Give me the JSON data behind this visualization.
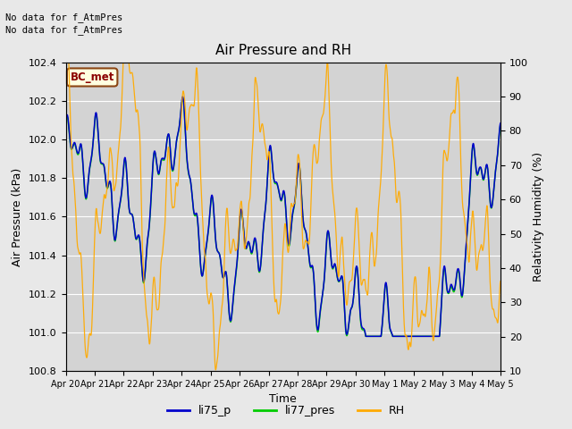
{
  "title": "Air Pressure and RH",
  "xlabel": "Time",
  "ylabel_left": "Air Pressure (kPa)",
  "ylabel_right": "Relativity Humidity (%)",
  "text_no_data_1": "No data for f_AtmPres",
  "text_no_data_2": "No data for f_AtmPres",
  "bc_met_label": "BC_met",
  "legend_entries": [
    "li75_p",
    "li77_pres",
    "RH"
  ],
  "legend_colors": [
    "#0000cc",
    "#00cc00",
    "#ffaa00"
  ],
  "line_colors": [
    "#0000cc",
    "#00cc00",
    "#ffaa00"
  ],
  "ylim_left": [
    100.8,
    102.4
  ],
  "ylim_right": [
    10,
    100
  ],
  "yticks_left": [
    100.8,
    101.0,
    101.2,
    101.4,
    101.6,
    101.8,
    102.0,
    102.2,
    102.4
  ],
  "yticks_right": [
    10,
    20,
    30,
    40,
    50,
    60,
    70,
    80,
    90,
    100
  ],
  "background_color": "#e8e8e8",
  "plot_bg_color": "#d3d3d3",
  "n_points": 2000,
  "seed": 42
}
